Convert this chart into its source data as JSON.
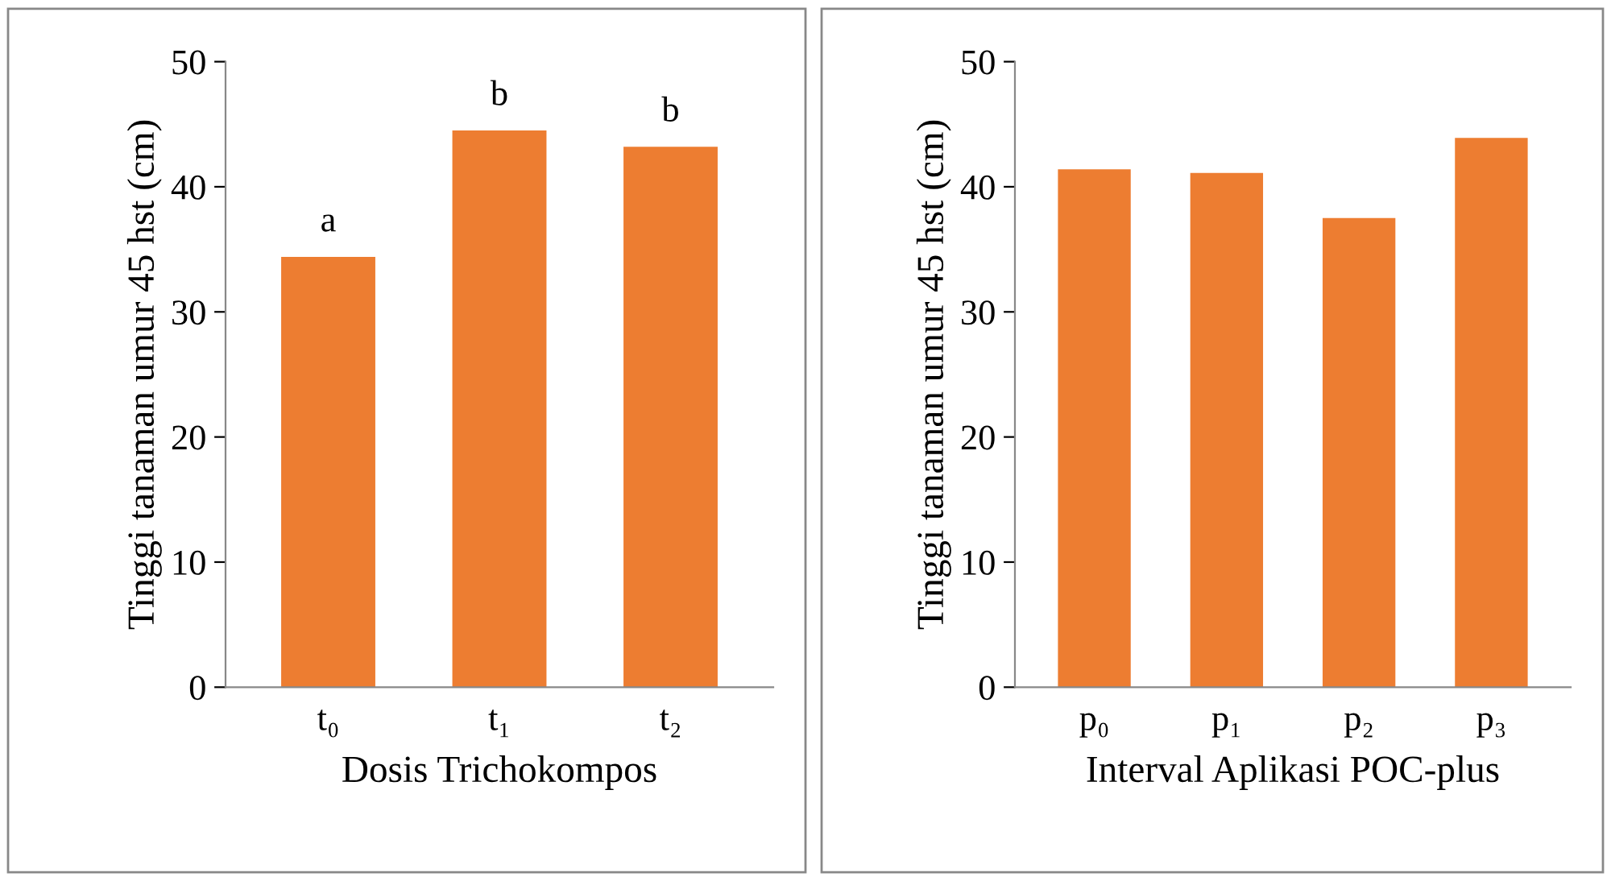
{
  "chart_data": [
    {
      "type": "bar",
      "xlabel": "Dosis Trichokompos",
      "ylabel": "Tinggi tanaman umur 45 hst (cm)",
      "categories": [
        "t₀",
        "t₁",
        "t₂"
      ],
      "values": [
        34.4,
        44.5,
        43.2
      ],
      "color": "#ed7d31",
      "ylim": [
        0,
        50
      ],
      "yticks": [
        0,
        10,
        20,
        30,
        40,
        50
      ],
      "grid": false,
      "legend": false,
      "annotations": [
        {
          "text": "a",
          "x": "t₀",
          "y": 34.4
        },
        {
          "text": "b",
          "x": "t₁",
          "y": 44.5
        },
        {
          "text": "b",
          "x": "t₂",
          "y": 43.2
        }
      ]
    },
    {
      "type": "bar",
      "xlabel": "Interval Aplikasi POC-plus",
      "ylabel": "Tinggi tanaman umur 45 hst (cm)",
      "categories": [
        "p₀",
        "p₁",
        "p₂",
        "p₃"
      ],
      "values": [
        41.4,
        41.1,
        37.5,
        43.9
      ],
      "color": "#ed7d31",
      "ylim": [
        0,
        50
      ],
      "yticks": [
        0,
        10,
        20,
        30,
        40,
        50
      ],
      "grid": false,
      "legend": false
    }
  ]
}
